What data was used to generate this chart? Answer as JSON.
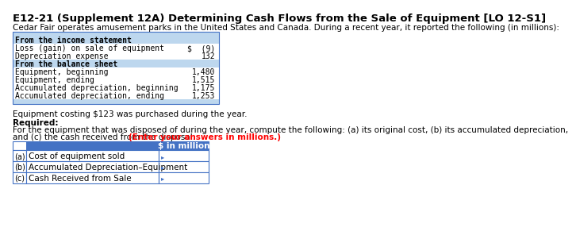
{
  "title": "E12-21 (Supplement 12A) Determining Cash Flows from the Sale of Equipment [LO 12-S1]",
  "intro": "Cedar Fair operates amusement parks in the United States and Canada. During a recent year, it reported the following (in millions):",
  "table1_rows": [
    {
      "label": "From the income statement",
      "value": "",
      "bold": true,
      "is_header": true
    },
    {
      "label": "Loss (gain) on sale of equipment",
      "value": "$  (9)",
      "bold": false,
      "is_header": false
    },
    {
      "label": "Depreciation expense",
      "value": "132",
      "bold": false,
      "is_header": false
    },
    {
      "label": "From the balance sheet",
      "value": "",
      "bold": true,
      "is_header": true
    },
    {
      "label": "Equipment, beginning",
      "value": "1,480",
      "bold": false,
      "is_header": false
    },
    {
      "label": "Equipment, ending",
      "value": "1,515",
      "bold": false,
      "is_header": false
    },
    {
      "label": "Accumulated depreciation, beginning",
      "value": "1,175",
      "bold": false,
      "is_header": false
    },
    {
      "label": "Accumulated depreciation, ending",
      "value": "1,253",
      "bold": false,
      "is_header": false
    }
  ],
  "purchase_note": "Equipment costing $123 was purchased during the year.",
  "required_label": "Required:",
  "required_text_line1": "For the equipment that was disposed of during the year, compute the following: (a) its original cost, (b) its accumulated depreciation,",
  "required_text_line2": "and (c) the cash received from the disposal. ",
  "required_bold_part": "(Enter your answers in millions.)",
  "table2_header": "$ in million",
  "table2_rows": [
    {
      "letter": "(a)",
      "label": "Cost of equipment sold"
    },
    {
      "letter": "(b)",
      "label": "Accumulated Depreciation–Equipment"
    },
    {
      "letter": "(c)",
      "label": "Cash Received from Sale"
    }
  ],
  "table1_bg_header": "#BDD7EE",
  "table1_bg_row": "#FFFFFF",
  "table1_border": "#4472C4",
  "table2_header_bg": "#4472C4",
  "table2_header_fg": "#FFFFFF",
  "table2_row_bg": "#FFFFFF",
  "table2_border": "#4472C4",
  "caret_color": "#4472C4"
}
